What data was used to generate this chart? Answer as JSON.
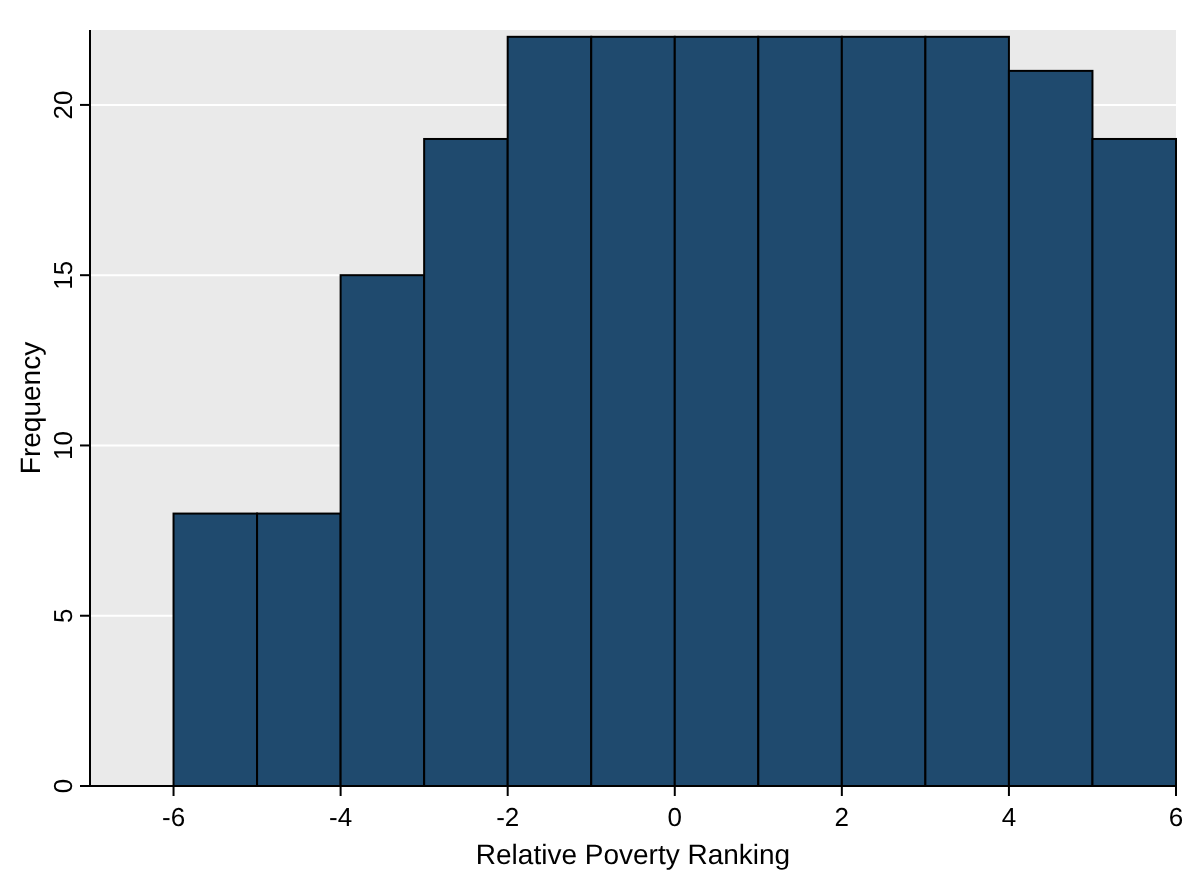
{
  "chart_data": {
    "type": "histogram",
    "xlabel": "Relative Poverty Ranking",
    "ylabel": "Frequency",
    "bins": [
      -6,
      -5,
      -4,
      -3,
      -2,
      -1,
      0,
      1,
      2,
      3,
      4,
      5,
      6
    ],
    "values": [
      8,
      8,
      15,
      19,
      22,
      22,
      22,
      22,
      22,
      22,
      21,
      19
    ],
    "color": "#1f4a6e",
    "xlim": [
      -7,
      6
    ],
    "xticks": [
      -6,
      -4,
      -2,
      0,
      2,
      4,
      6
    ],
    "ylim": [
      0,
      22.2
    ],
    "yticks": [
      0,
      5,
      10,
      15,
      20
    ],
    "grid": "y"
  }
}
